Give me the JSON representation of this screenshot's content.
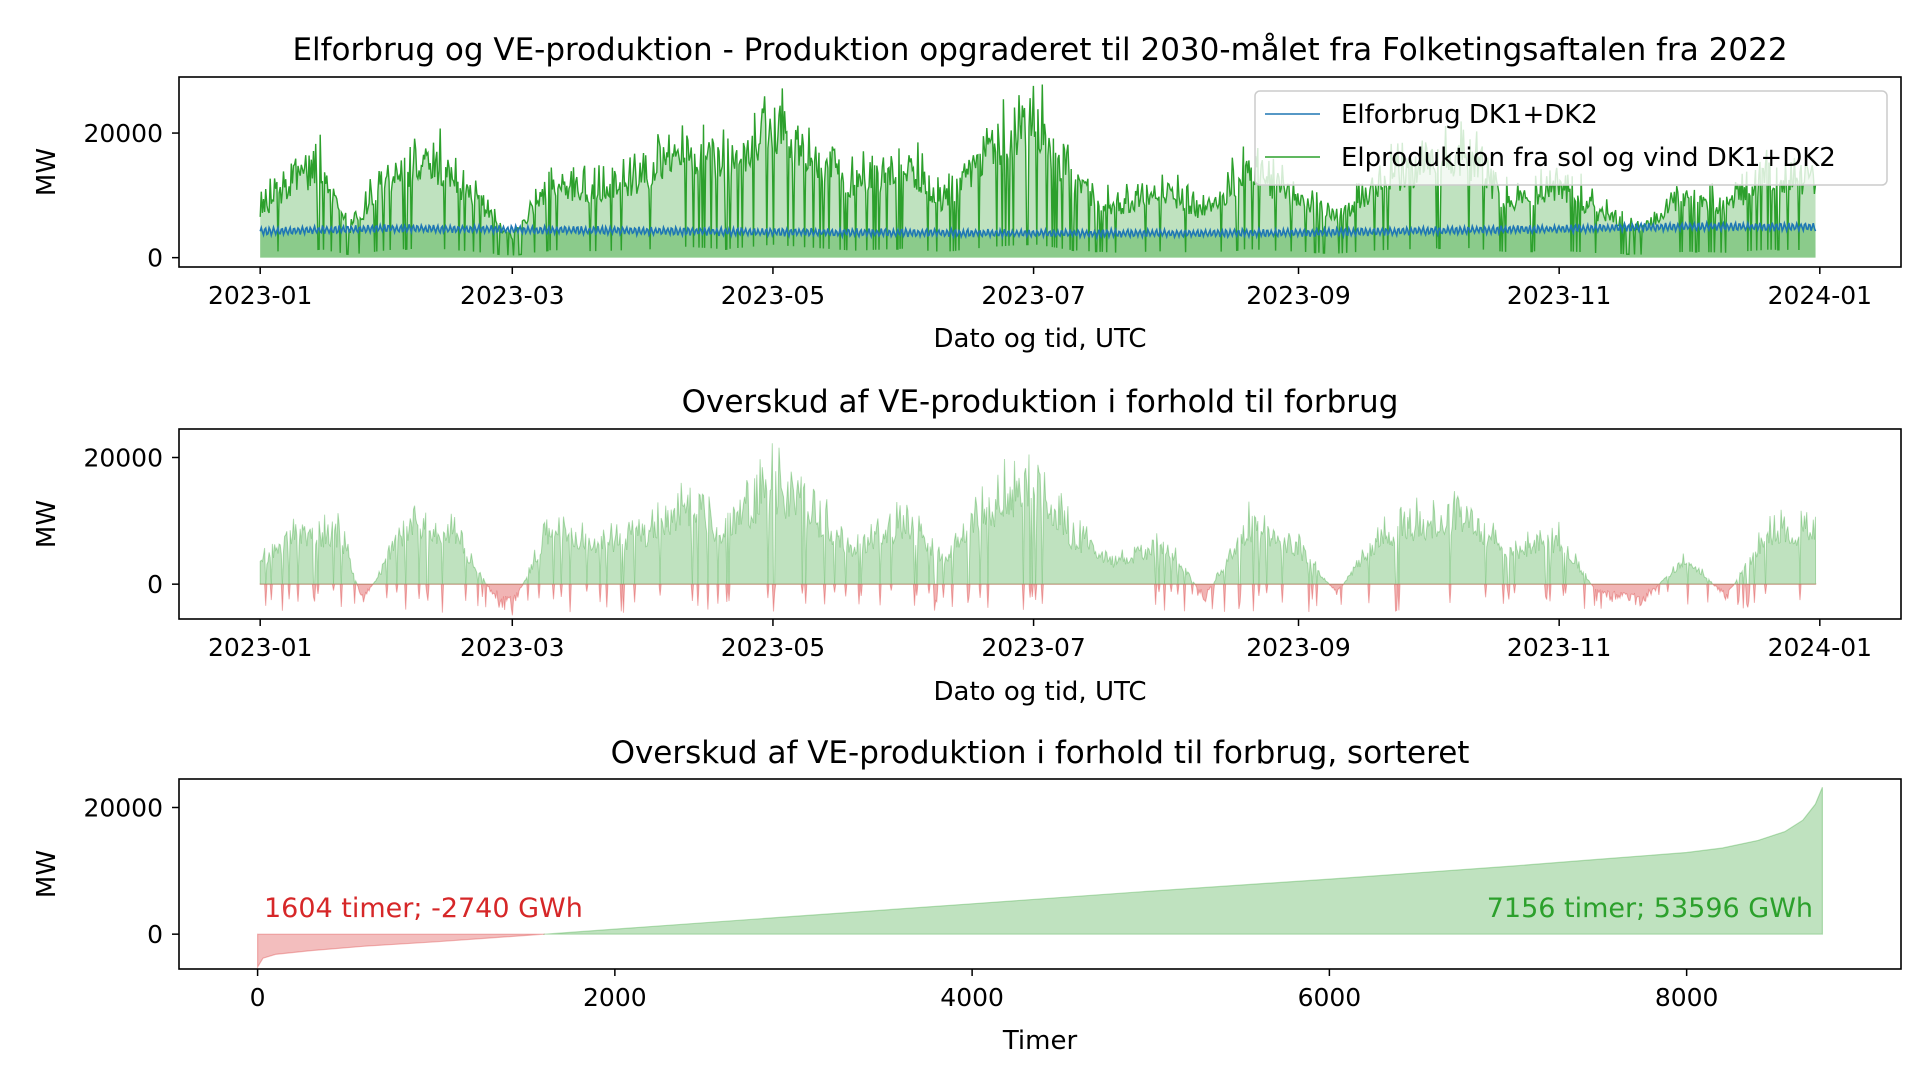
{
  "chart_data": [
    {
      "type": "line",
      "title": "Elforbrug og VE-produktion - Produktion opgraderet til 2030-målet fra Folketingsaftalen fra 2022",
      "xlabel": "Dato og tid, UTC",
      "ylabel": "MW",
      "xlim": [
        "2022-12-13",
        "2024-01-20"
      ],
      "ylim": [
        -1500,
        29000
      ],
      "x_ticks": [
        "2023-01",
        "2023-03",
        "2023-05",
        "2023-07",
        "2023-09",
        "2023-11",
        "2024-01"
      ],
      "y_ticks": [
        0,
        20000
      ],
      "legend_position": "top-right",
      "series": [
        {
          "name": "Elforbrug DK1+DK2",
          "color": "#1f77b4",
          "x": [
            "2023-01-01",
            "2023-02-01",
            "2023-03-01",
            "2023-04-01",
            "2023-05-01",
            "2023-06-01",
            "2023-07-01",
            "2023-08-01",
            "2023-09-01",
            "2023-10-01",
            "2023-11-01",
            "2023-12-01",
            "2023-12-31"
          ],
          "y": [
            4200,
            4700,
            4500,
            4300,
            4100,
            4000,
            3900,
            3900,
            4000,
            4300,
            4600,
            5000,
            4900
          ]
        },
        {
          "name": "Elproduktion fra sol og vind DK1+DK2",
          "color": "#2ca02c",
          "x": [
            "2023-01-01",
            "2023-01-08",
            "2023-01-15",
            "2023-01-22",
            "2023-02-01",
            "2023-02-10",
            "2023-02-20",
            "2023-03-01",
            "2023-03-10",
            "2023-03-20",
            "2023-04-01",
            "2023-04-10",
            "2023-04-20",
            "2023-05-01",
            "2023-05-10",
            "2023-05-20",
            "2023-06-01",
            "2023-06-10",
            "2023-06-20",
            "2023-07-01",
            "2023-07-10",
            "2023-07-20",
            "2023-08-01",
            "2023-08-10",
            "2023-08-20",
            "2023-09-01",
            "2023-09-10",
            "2023-09-20",
            "2023-10-01",
            "2023-10-10",
            "2023-10-20",
            "2023-11-01",
            "2023-11-10",
            "2023-11-20",
            "2023-12-01",
            "2023-12-10",
            "2023-12-20",
            "2023-12-31"
          ],
          "y": [
            9000,
            15000,
            17000,
            6000,
            16000,
            19000,
            12000,
            4000,
            15000,
            13000,
            16000,
            22000,
            17000,
            26000,
            20000,
            14000,
            18000,
            11000,
            21000,
            27000,
            15000,
            10000,
            13000,
            9000,
            17000,
            12000,
            8000,
            15000,
            18000,
            20000,
            11000,
            14000,
            9000,
            6000,
            12000,
            10000,
            16000,
            15000
          ]
        }
      ]
    },
    {
      "type": "area",
      "title": "Overskud af VE-produktion i forhold til forbrug",
      "xlabel": "Dato og tid, UTC",
      "ylabel": "MW",
      "xlim": [
        "2022-12-13",
        "2024-01-20"
      ],
      "ylim": [
        -5500,
        24500
      ],
      "x_ticks": [
        "2023-01",
        "2023-03",
        "2023-05",
        "2023-07",
        "2023-09",
        "2023-11",
        "2024-01"
      ],
      "y_ticks": [
        0,
        20000
      ],
      "positive_color": "#2ca02c",
      "negative_color": "#d62728",
      "series": [
        {
          "name": "",
          "x": [
            "2023-01-01",
            "2023-01-10",
            "2023-01-20",
            "2023-01-25",
            "2023-02-05",
            "2023-02-15",
            "2023-02-25",
            "2023-03-01",
            "2023-03-10",
            "2023-03-20",
            "2023-04-01",
            "2023-04-10",
            "2023-04-20",
            "2023-05-01",
            "2023-05-10",
            "2023-05-20",
            "2023-06-01",
            "2023-06-10",
            "2023-06-20",
            "2023-07-01",
            "2023-07-10",
            "2023-07-20",
            "2023-08-01",
            "2023-08-10",
            "2023-08-20",
            "2023-09-01",
            "2023-09-10",
            "2023-09-20",
            "2023-10-01",
            "2023-10-10",
            "2023-10-20",
            "2023-11-01",
            "2023-11-10",
            "2023-11-20",
            "2023-12-01",
            "2023-12-10",
            "2023-12-20",
            "2023-12-31"
          ],
          "y": [
            5000,
            12000,
            11000,
            -4000,
            14000,
            12000,
            -3000,
            -5000,
            13000,
            9000,
            11000,
            17000,
            12000,
            22000,
            16000,
            8000,
            14000,
            6000,
            17000,
            23000,
            11000,
            5000,
            9000,
            -3000,
            13000,
            8000,
            -2000,
            11000,
            14000,
            16000,
            7000,
            10000,
            -2000,
            -4000,
            6000,
            -3000,
            12000,
            12000
          ]
        }
      ]
    },
    {
      "type": "area",
      "title": "Overskud af VE-produktion i forhold til forbrug, sorteret",
      "xlabel": "Timer",
      "ylabel": "MW",
      "xlim": [
        -440,
        9200
      ],
      "ylim": [
        -5500,
        24500
      ],
      "x_ticks": [
        0,
        2000,
        4000,
        6000,
        8000
      ],
      "y_ticks": [
        0,
        20000
      ],
      "series": [
        {
          "name": "",
          "x": [
            0,
            30,
            100,
            300,
            600,
            1000,
            1300,
            1604,
            2000,
            3000,
            4000,
            5000,
            6000,
            7000,
            7500,
            8000,
            8200,
            8400,
            8550,
            8650,
            8720,
            8760
          ],
          "y": [
            -5200,
            -3800,
            -3200,
            -2600,
            -1900,
            -1200,
            -600,
            0,
            800,
            2800,
            4800,
            6800,
            8700,
            10700,
            11800,
            12900,
            13600,
            14800,
            16200,
            18000,
            20500,
            23200
          ]
        }
      ],
      "annotations": [
        {
          "text": "1604 timer; -2740 GWh",
          "color": "#d62728"
        },
        {
          "text": "7156 timer; 53596 GWh",
          "color": "#2ca02c"
        }
      ]
    }
  ]
}
